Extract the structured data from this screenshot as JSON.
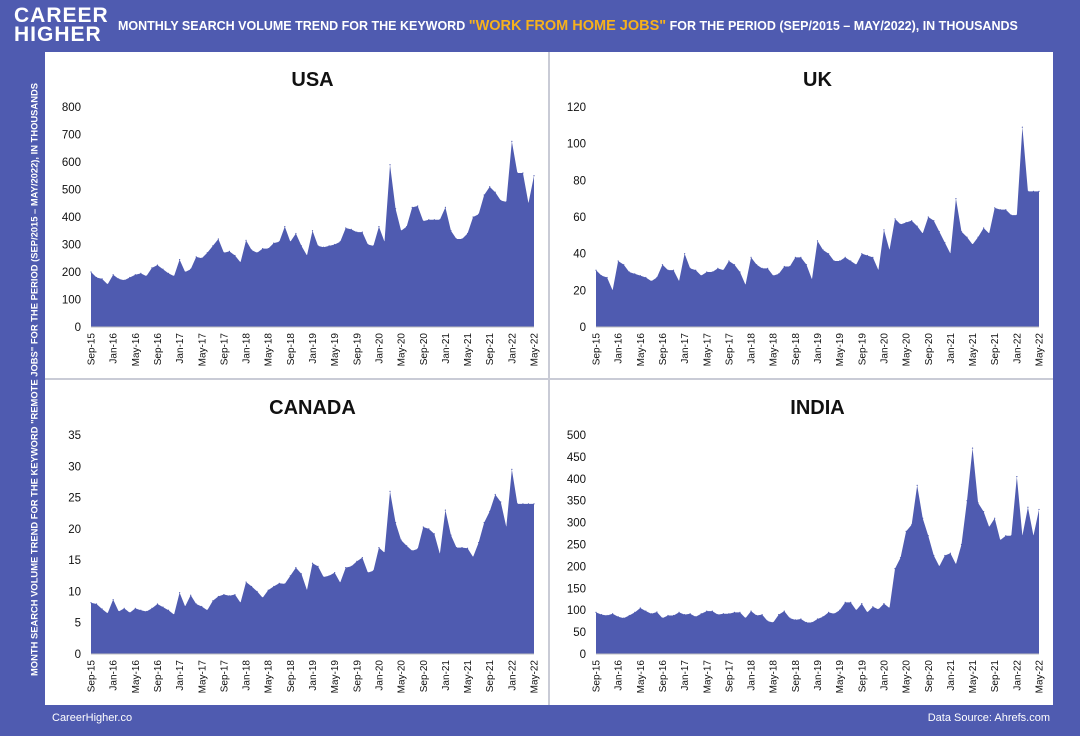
{
  "header": {
    "logo_line1": "CAREER",
    "logo_line2": "HIGHER",
    "title_prefix": "MONTHLY SEARCH VOLUME TREND FOR THE KEYWORD ",
    "title_keyword": "\"WORK FROM HOME JOBS\"",
    "title_suffix": " FOR THE PERIOD (SEP/2015 – MAY/2022), IN THOUSANDS"
  },
  "side_label": "MONTH SEARCH VOLUME TREND FOR THE KEYWORD \"REMOTE JOBS\" FOR THE PERIOD (SEP/2015 – MAY/2022), IN THOUSANDS",
  "footer": {
    "left": "CareerHigher.co",
    "right": "Data Source: Ahrefs.com"
  },
  "colors": {
    "background": "#4f5bb0",
    "area_fill": "#4f5bb0",
    "keyword": "#f7b21c"
  },
  "chart_data": [
    {
      "type": "area",
      "title": "USA",
      "ylim": [
        0,
        800
      ],
      "yticks": [
        0,
        100,
        200,
        300,
        400,
        500,
        600,
        700,
        800
      ],
      "grid": false,
      "xtick_labels": [
        "Sep-15",
        "Jan-16",
        "May-16",
        "Sep-16",
        "Jan-17",
        "May-17",
        "Sep-17",
        "Jan-18",
        "May-18",
        "Sep-18",
        "Jan-19",
        "May-19",
        "Sep-19",
        "Jan-20",
        "May-20",
        "Sep-20",
        "Jan-21",
        "May-21",
        "Sep-21",
        "Jan-22",
        "May-22"
      ],
      "values": [
        200,
        180,
        175,
        155,
        190,
        175,
        170,
        180,
        190,
        195,
        185,
        215,
        225,
        210,
        195,
        185,
        245,
        200,
        210,
        255,
        250,
        270,
        295,
        320,
        270,
        275,
        260,
        235,
        315,
        280,
        270,
        285,
        285,
        305,
        310,
        365,
        310,
        340,
        295,
        260,
        350,
        295,
        290,
        295,
        300,
        310,
        360,
        355,
        345,
        345,
        300,
        295,
        365,
        310,
        590,
        430,
        350,
        365,
        435,
        440,
        385,
        390,
        390,
        390,
        435,
        350,
        320,
        320,
        340,
        400,
        410,
        480,
        510,
        490,
        460,
        455,
        675,
        560,
        560,
        450,
        550
      ]
    },
    {
      "type": "area",
      "title": "UK",
      "ylim": [
        0,
        120
      ],
      "yticks": [
        0,
        20,
        40,
        60,
        80,
        100,
        120
      ],
      "grid": false,
      "xtick_labels": [
        "Sep-15",
        "Jan-16",
        "May-16",
        "Sep-16",
        "Jan-17",
        "May-17",
        "Sep-17",
        "Jan-18",
        "May-18",
        "Sep-18",
        "Jan-19",
        "May-19",
        "Sep-19",
        "Jan-20",
        "May-20",
        "Sep-20",
        "Jan-21",
        "May-21",
        "Sep-21",
        "Jan-22",
        "May-22"
      ],
      "values": [
        31,
        28,
        27,
        20,
        36,
        34,
        30,
        29,
        28,
        27,
        25,
        27,
        34,
        31,
        31,
        25,
        40,
        32,
        31,
        28,
        30,
        30,
        32,
        31,
        36,
        34,
        30,
        23,
        38,
        34,
        32,
        32,
        28,
        29,
        33,
        33,
        38,
        38,
        34,
        26,
        47,
        42,
        40,
        36,
        36,
        38,
        36,
        34,
        40,
        39,
        38,
        31,
        53,
        42,
        59,
        56,
        57,
        58,
        55,
        51,
        60,
        58,
        52,
        46,
        40,
        70,
        52,
        49,
        45,
        49,
        54,
        51,
        65,
        64,
        64,
        61,
        61,
        109,
        74,
        74,
        74
      ]
    },
    {
      "type": "area",
      "title": "CANADA",
      "ylim": [
        0,
        35
      ],
      "yticks": [
        0,
        5,
        10,
        15,
        20,
        25,
        30,
        35
      ],
      "grid": false,
      "xtick_labels": [
        "Sep-15",
        "Jan-16",
        "May-16",
        "Sep-16",
        "Jan-17",
        "May-17",
        "Sep-17",
        "Jan-18",
        "May-18",
        "Sep-18",
        "Jan-19",
        "May-19",
        "Sep-19",
        "Jan-20",
        "May-20",
        "Sep-20",
        "Jan-21",
        "May-21",
        "Sep-21",
        "Jan-22",
        "May-22"
      ],
      "values": [
        8.2,
        8,
        7.2,
        6.5,
        8.7,
        6.8,
        7.3,
        6.6,
        7.3,
        7,
        6.8,
        7.3,
        8,
        7.5,
        7,
        6.3,
        9.8,
        7.6,
        9.4,
        8,
        7.6,
        7,
        8.5,
        9.2,
        9.5,
        9.3,
        9.5,
        8.2,
        11.5,
        10.8,
        10,
        9,
        10.2,
        10.8,
        11.3,
        11.2,
        12.5,
        13.8,
        12.8,
        10.2,
        14.5,
        14,
        12.3,
        12.5,
        13,
        11.4,
        13.8,
        14,
        14.8,
        15.4,
        13,
        13.3,
        17,
        16.2,
        26,
        21,
        18.2,
        17.3,
        16.5,
        16.8,
        20.3,
        20,
        19.2,
        16,
        23,
        19,
        17,
        17,
        16.9,
        15.5,
        17.8,
        21,
        22.8,
        25.5,
        24.3,
        20.3,
        29.5,
        24,
        24,
        24,
        24
      ]
    },
    {
      "type": "area",
      "title": "INDIA",
      "ylim": [
        0,
        500
      ],
      "yticks": [
        0,
        50,
        100,
        150,
        200,
        250,
        300,
        350,
        400,
        450,
        500
      ],
      "grid": false,
      "xtick_labels": [
        "Sep-15",
        "Jan-16",
        "May-16",
        "Sep-16",
        "Jan-17",
        "May-17",
        "Sep-17",
        "Jan-18",
        "May-18",
        "Sep-18",
        "Jan-19",
        "May-19",
        "Sep-19",
        "Jan-20",
        "May-20",
        "Sep-20",
        "Jan-21",
        "May-21",
        "Sep-21",
        "Jan-22",
        "May-22"
      ],
      "values": [
        95,
        90,
        88,
        92,
        85,
        82,
        88,
        95,
        105,
        98,
        92,
        96,
        82,
        88,
        88,
        95,
        90,
        92,
        85,
        92,
        98,
        98,
        90,
        92,
        92,
        95,
        95,
        82,
        98,
        88,
        90,
        75,
        72,
        90,
        98,
        82,
        78,
        80,
        72,
        72,
        80,
        85,
        95,
        92,
        100,
        118,
        118,
        100,
        115,
        95,
        108,
        102,
        115,
        105,
        195,
        220,
        280,
        295,
        385,
        310,
        270,
        225,
        200,
        225,
        230,
        205,
        250,
        350,
        470,
        345,
        325,
        290,
        310,
        260,
        270,
        270,
        405,
        270,
        335,
        270,
        330
      ]
    }
  ]
}
